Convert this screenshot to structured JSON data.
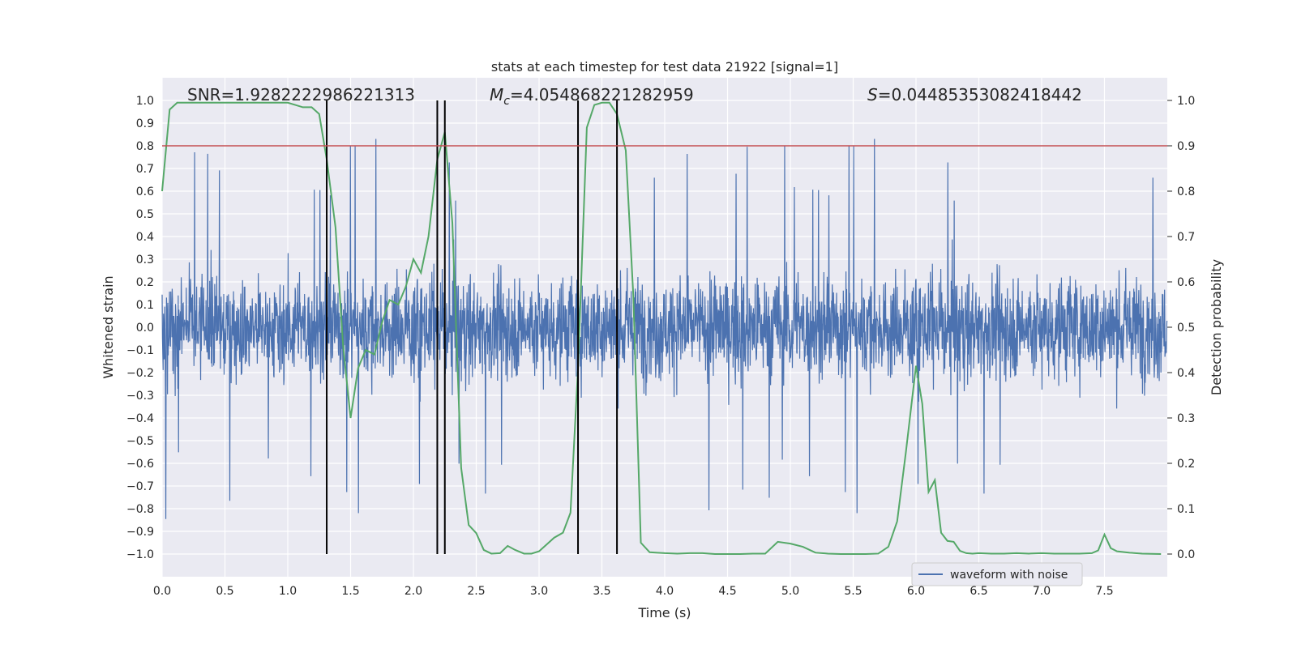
{
  "chart_data": {
    "type": "line",
    "title": "stats at each timestep for test data 21922 [signal=1]",
    "xlabel": "Time (s)",
    "ylabel": "Whitened strain",
    "ylabel_right": "Detection probability",
    "xlim": [
      0.0,
      8.0
    ],
    "ylim": [
      -1.1,
      1.1
    ],
    "ylim_right": [
      -0.05,
      1.05
    ],
    "x_ticks": [
      "0.0",
      "0.5",
      "1.0",
      "1.5",
      "2.0",
      "2.5",
      "3.0",
      "3.5",
      "4.0",
      "4.5",
      "5.0",
      "5.5",
      "6.0",
      "6.5",
      "7.0",
      "7.5"
    ],
    "y_ticks": [
      "1.0",
      "0.9",
      "0.8",
      "0.7",
      "0.6",
      "0.5",
      "0.4",
      "0.3",
      "0.2",
      "0.1",
      "0.0",
      "−0.1",
      "−0.2",
      "−0.3",
      "−0.4",
      "−0.5",
      "−0.6",
      "−0.7",
      "−0.8",
      "−0.9",
      "−1.0"
    ],
    "y_ticks_right": [
      "1.0",
      "0.9",
      "0.8",
      "0.7",
      "0.6",
      "0.5",
      "0.4",
      "0.3",
      "0.2",
      "0.1",
      "0.0"
    ],
    "annotations": {
      "snr": "SNR=1.9282222986221313",
      "mc_symbol": "M",
      "mc_sub": "c",
      "mc_value": "=4.054868221282959",
      "s_symbol": "S",
      "s_value": "=0.04485353082418442"
    },
    "threshold": {
      "axis": "right",
      "value": 0.9,
      "color": "#c44e52"
    },
    "vlines": {
      "x": [
        1.31,
        2.19,
        2.25,
        3.31,
        3.62
      ],
      "ymin": -1.0,
      "ymax": 1.0,
      "color": "#000000"
    },
    "legend": {
      "label": "waveform with noise",
      "loc": "lower-right"
    },
    "series": [
      {
        "name": "waveform with noise",
        "axis": "left",
        "color": "#4c72b0",
        "style": "noise",
        "description_envelope": {
          "x": [
            0.0,
            8.0
          ],
          "typical_abs": 0.4,
          "peak_values": [
            0.81,
            -0.81,
            0.99,
            0.98,
            -0.78,
            0.85,
            0.85,
            -0.81,
            0.84,
            0.93,
            0.82,
            0.82,
            -0.84,
            -0.88
          ]
        }
      },
      {
        "name": "detection probability",
        "axis": "right",
        "color": "#55a868",
        "x": [
          0.0,
          0.06,
          0.12,
          0.18,
          0.25,
          0.31,
          0.38,
          0.44,
          0.5,
          0.56,
          0.62,
          0.69,
          0.75,
          0.81,
          0.88,
          0.94,
          1.0,
          1.06,
          1.12,
          1.19,
          1.25,
          1.31,
          1.38,
          1.44,
          1.5,
          1.56,
          1.62,
          1.69,
          1.75,
          1.81,
          1.88,
          1.94,
          2.0,
          2.06,
          2.12,
          2.19,
          2.25,
          2.31,
          2.38,
          2.44,
          2.5,
          2.56,
          2.62,
          2.69,
          2.75,
          2.81,
          2.88,
          2.94,
          3.0,
          3.06,
          3.12,
          3.19,
          3.25,
          3.31,
          3.38,
          3.44,
          3.5,
          3.56,
          3.62,
          3.69,
          3.75,
          3.81,
          3.88,
          3.94,
          4.0,
          4.1,
          4.2,
          4.3,
          4.4,
          4.5,
          4.6,
          4.7,
          4.8,
          4.9,
          5.0,
          5.1,
          5.2,
          5.3,
          5.4,
          5.5,
          5.6,
          5.7,
          5.78,
          5.85,
          5.92,
          6.0,
          6.05,
          6.1,
          6.15,
          6.2,
          6.25,
          6.3,
          6.35,
          6.4,
          6.45,
          6.5,
          6.6,
          6.7,
          6.8,
          6.9,
          7.0,
          7.1,
          7.2,
          7.3,
          7.4,
          7.45,
          7.5,
          7.55,
          7.6,
          7.7,
          7.8,
          7.95
        ],
        "values": [
          0.8,
          0.98,
          0.995,
          0.995,
          0.995,
          0.995,
          0.995,
          0.995,
          0.995,
          0.995,
          0.995,
          0.995,
          0.995,
          0.995,
          0.995,
          0.995,
          0.995,
          0.99,
          0.985,
          0.985,
          0.97,
          0.87,
          0.72,
          0.46,
          0.3,
          0.41,
          0.45,
          0.44,
          0.51,
          0.56,
          0.55,
          0.59,
          0.65,
          0.62,
          0.7,
          0.87,
          0.93,
          0.73,
          0.19,
          0.064,
          0.046,
          0.009,
          0.001,
          0.002,
          0.018,
          0.009,
          0.001,
          0.001,
          0.006,
          0.021,
          0.036,
          0.047,
          0.091,
          0.41,
          0.94,
          0.99,
          0.995,
          0.995,
          0.97,
          0.89,
          0.57,
          0.025,
          0.004,
          0.003,
          0.002,
          0.001,
          0.002,
          0.002,
          0.0,
          0.0,
          0.0,
          0.001,
          0.001,
          0.027,
          0.023,
          0.016,
          0.003,
          0.001,
          0.0,
          0.0,
          0.0,
          0.001,
          0.016,
          0.072,
          0.226,
          0.415,
          0.331,
          0.137,
          0.163,
          0.047,
          0.029,
          0.027,
          0.007,
          0.002,
          0.001,
          0.002,
          0.001,
          0.001,
          0.002,
          0.001,
          0.002,
          0.001,
          0.001,
          0.001,
          0.002,
          0.008,
          0.043,
          0.013,
          0.006,
          0.003,
          0.001,
          0.0
        ]
      }
    ]
  }
}
